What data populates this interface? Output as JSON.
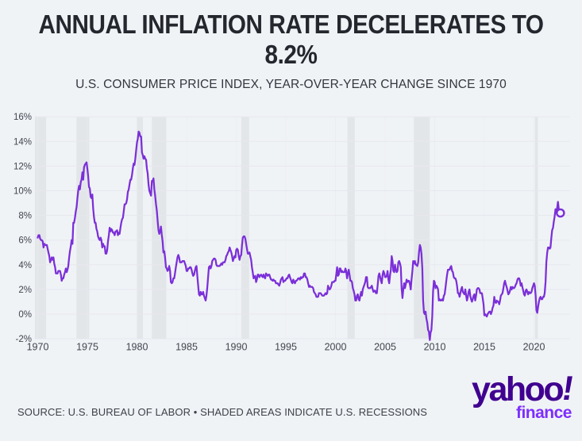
{
  "poster": {
    "headline_line1": "ANNUAL INFLATION RATE DECELERATES TO",
    "headline_line2": "8.2%",
    "headline_full": "ANNUAL INFLATION RATE DECELERATES TO 8.2%",
    "subtitle": "U.S. CONSUMER PRICE INDEX, YEAR-OVER-YEAR CHANGE SINCE 1970",
    "source_note": "SOURCE: U.S. BUREAU OF LABOR • SHADED AREAS INDICATE U.S. RECESSIONS",
    "logo": {
      "brand": "yahoo",
      "exclaim": "!",
      "sub_brand": "finance"
    }
  },
  "colors": {
    "background": "#f0f3f6",
    "line": "#7b2fd8",
    "recession_band": "#e3e6e9",
    "grid": "#e7e7ef",
    "grid_vertical": "#e9ecf0",
    "axis_text": "#41464e",
    "title_text": "#24272d",
    "logo_purple": "#400090",
    "logo_finance_purple": "#7d2eff"
  },
  "chart_data": {
    "type": "line",
    "title": "ANNUAL INFLATION RATE DECELERATES TO 8.2%",
    "subtitle": "U.S. CONSUMER PRICE INDEX, YEAR-OVER-YEAR CHANGE SINCE 1970",
    "unit": "%",
    "x_start": 1970,
    "x_end_label": "2022-09",
    "xticks": [
      1970,
      1975,
      1980,
      1985,
      1990,
      1995,
      2000,
      2005,
      2010,
      2015,
      2020
    ],
    "ylim": [
      -2,
      16
    ],
    "yticks": [
      -2,
      0,
      2,
      4,
      6,
      8,
      10,
      12,
      14,
      16
    ],
    "ytick_suffix": "%",
    "grid": true,
    "legend": false,
    "latest_point": {
      "date": "2022-09",
      "value": 8.2,
      "marker": "open-circle"
    },
    "recessions": [
      {
        "start": 1969.7,
        "end": 1970.85
      },
      {
        "start": 1973.9,
        "end": 1975.2
      },
      {
        "start": 1980.0,
        "end": 1980.6
      },
      {
        "start": 1981.5,
        "end": 1982.95
      },
      {
        "start": 1990.5,
        "end": 1991.3
      },
      {
        "start": 2001.2,
        "end": 2001.95
      },
      {
        "start": 2007.9,
        "end": 2009.5
      },
      {
        "start": 2020.1,
        "end": 2020.4
      }
    ],
    "series": [
      {
        "name": "U.S. CPI year-over-year % change",
        "color": "#7b2fd8",
        "monthly_by_year": [
          {
            "year": 1970,
            "values": [
              6.2,
              6.4,
              6.4,
              6.1,
              6.0,
              6.0,
              5.9,
              5.4,
              5.7,
              5.6,
              5.6,
              5.6
            ]
          },
          {
            "year": 1971,
            "values": [
              5.3,
              5.0,
              4.7,
              4.2,
              4.4,
              4.6,
              4.4,
              4.6,
              4.1,
              3.8,
              3.3,
              3.3
            ]
          },
          {
            "year": 1972,
            "values": [
              3.3,
              3.5,
              3.5,
              3.5,
              3.2,
              2.7,
              2.9,
              2.9,
              3.2,
              3.4,
              3.7,
              3.4
            ]
          },
          {
            "year": 1973,
            "values": [
              3.6,
              3.9,
              4.6,
              5.1,
              5.5,
              6.0,
              5.7,
              7.4,
              7.4,
              7.8,
              8.3,
              8.7
            ]
          },
          {
            "year": 1974,
            "values": [
              9.4,
              10.0,
              10.4,
              10.1,
              10.7,
              10.9,
              11.5,
              10.9,
              11.9,
              12.1,
              12.2,
              12.3
            ]
          },
          {
            "year": 1975,
            "values": [
              11.8,
              11.2,
              10.3,
              10.2,
              9.5,
              9.4,
              9.7,
              8.6,
              7.9,
              7.4,
              7.4,
              6.9
            ]
          },
          {
            "year": 1976,
            "values": [
              6.7,
              6.3,
              6.1,
              6.0,
              6.2,
              6.0,
              5.4,
              5.7,
              5.5,
              5.5,
              4.9,
              4.9
            ]
          },
          {
            "year": 1977,
            "values": [
              5.2,
              5.9,
              6.4,
              7.0,
              6.7,
              6.9,
              6.8,
              6.6,
              6.6,
              6.4,
              6.7,
              6.7
            ]
          },
          {
            "year": 1978,
            "values": [
              6.8,
              6.4,
              6.6,
              6.5,
              7.0,
              7.4,
              7.7,
              7.8,
              8.3,
              8.9,
              8.9,
              9.0
            ]
          },
          {
            "year": 1979,
            "values": [
              9.3,
              9.9,
              10.1,
              10.5,
              10.9,
              10.9,
              11.3,
              11.8,
              12.2,
              12.1,
              12.6,
              13.3
            ]
          },
          {
            "year": 1980,
            "values": [
              13.9,
              14.2,
              14.8,
              14.7,
              14.4,
              14.4,
              13.1,
              12.9,
              12.6,
              12.8,
              12.6,
              12.5
            ]
          },
          {
            "year": 1981,
            "values": [
              11.8,
              11.4,
              10.5,
              10.0,
              9.8,
              9.6,
              10.8,
              10.8,
              11.0,
              10.1,
              9.6,
              8.9
            ]
          },
          {
            "year": 1982,
            "values": [
              8.4,
              7.6,
              6.8,
              6.5,
              6.7,
              7.1,
              6.4,
              5.9,
              5.0,
              5.1,
              4.6,
              3.8
            ]
          },
          {
            "year": 1983,
            "values": [
              3.7,
              3.5,
              3.6,
              3.9,
              3.5,
              2.6,
              2.5,
              2.6,
              2.9,
              2.9,
              3.3,
              3.8
            ]
          },
          {
            "year": 1984,
            "values": [
              4.2,
              4.6,
              4.8,
              4.6,
              4.2,
              4.2,
              4.2,
              4.3,
              4.3,
              4.3,
              4.1,
              3.9
            ]
          },
          {
            "year": 1985,
            "values": [
              3.5,
              3.5,
              3.7,
              3.7,
              3.8,
              3.8,
              3.6,
              3.3,
              3.1,
              3.2,
              3.5,
              3.8
            ]
          },
          {
            "year": 1986,
            "values": [
              3.9,
              3.1,
              2.3,
              1.6,
              1.5,
              1.8,
              1.6,
              1.6,
              1.8,
              1.5,
              1.3,
              1.1
            ]
          },
          {
            "year": 1987,
            "values": [
              1.5,
              2.1,
              3.0,
              3.8,
              3.9,
              3.7,
              3.9,
              4.3,
              4.4,
              4.5,
              4.5,
              4.4
            ]
          },
          {
            "year": 1988,
            "values": [
              4.0,
              3.9,
              3.9,
              3.9,
              3.9,
              4.0,
              4.1,
              4.0,
              4.2,
              4.2,
              4.2,
              4.4
            ]
          },
          {
            "year": 1989,
            "values": [
              4.7,
              4.8,
              5.0,
              5.1,
              5.4,
              5.2,
              5.0,
              4.7,
              4.3,
              4.5,
              4.7,
              4.6
            ]
          },
          {
            "year": 1990,
            "values": [
              5.2,
              5.3,
              5.2,
              4.7,
              4.4,
              4.7,
              4.8,
              5.6,
              6.2,
              6.3,
              6.3,
              6.1
            ]
          },
          {
            "year": 1991,
            "values": [
              5.7,
              5.3,
              4.9,
              4.9,
              5.0,
              4.7,
              4.4,
              3.8,
              3.4,
              2.9,
              3.0,
              3.1
            ]
          },
          {
            "year": 1992,
            "values": [
              2.6,
              2.8,
              3.2,
              3.2,
              3.0,
              3.1,
              3.2,
              3.1,
              3.0,
              3.2,
              3.0,
              2.9
            ]
          },
          {
            "year": 1993,
            "values": [
              3.3,
              3.2,
              3.1,
              3.2,
              3.2,
              3.0,
              2.8,
              2.8,
              2.7,
              2.8,
              2.7,
              2.7
            ]
          },
          {
            "year": 1994,
            "values": [
              2.5,
              2.5,
              2.5,
              2.4,
              2.3,
              2.5,
              2.8,
              2.9,
              3.0,
              2.6,
              2.7,
              2.7
            ]
          },
          {
            "year": 1995,
            "values": [
              2.8,
              2.9,
              2.9,
              3.1,
              3.2,
              3.0,
              2.8,
              2.6,
              2.5,
              2.8,
              2.6,
              2.5
            ]
          },
          {
            "year": 1996,
            "values": [
              2.7,
              2.7,
              2.8,
              2.9,
              2.9,
              2.8,
              3.0,
              2.9,
              3.0,
              3.0,
              3.3,
              3.3
            ]
          },
          {
            "year": 1997,
            "values": [
              3.0,
              3.0,
              2.8,
              2.5,
              2.2,
              2.3,
              2.2,
              2.2,
              2.2,
              2.1,
              1.8,
              1.7
            ]
          },
          {
            "year": 1998,
            "values": [
              1.6,
              1.4,
              1.4,
              1.4,
              1.7,
              1.7,
              1.7,
              1.6,
              1.5,
              1.5,
              1.5,
              1.6
            ]
          },
          {
            "year": 1999,
            "values": [
              1.7,
              1.6,
              1.7,
              2.3,
              2.1,
              2.0,
              2.1,
              2.3,
              2.6,
              2.6,
              2.6,
              2.7
            ]
          },
          {
            "year": 2000,
            "values": [
              2.7,
              3.2,
              3.8,
              3.1,
              3.2,
              3.7,
              3.7,
              3.4,
              3.5,
              3.4,
              3.4,
              3.4
            ]
          },
          {
            "year": 2001,
            "values": [
              3.7,
              3.5,
              2.9,
              3.3,
              3.6,
              3.2,
              2.7,
              2.7,
              2.6,
              2.1,
              1.9,
              1.6
            ]
          },
          {
            "year": 2002,
            "values": [
              1.1,
              1.1,
              1.5,
              1.6,
              1.2,
              1.1,
              1.5,
              1.8,
              1.5,
              2.0,
              2.2,
              2.4
            ]
          },
          {
            "year": 2003,
            "values": [
              2.6,
              3.0,
              3.0,
              2.2,
              2.1,
              2.1,
              2.1,
              2.2,
              2.3,
              2.0,
              1.8,
              1.9
            ]
          },
          {
            "year": 2004,
            "values": [
              1.9,
              1.7,
              1.7,
              2.3,
              3.1,
              3.3,
              3.0,
              2.7,
              2.5,
              3.2,
              3.5,
              3.3
            ]
          },
          {
            "year": 2005,
            "values": [
              3.0,
              3.0,
              3.1,
              3.5,
              2.8,
              2.5,
              3.2,
              3.6,
              4.7,
              4.3,
              3.5,
              3.4
            ]
          },
          {
            "year": 2006,
            "values": [
              4.0,
              3.6,
              3.4,
              3.5,
              4.2,
              4.3,
              4.1,
              3.8,
              2.1,
              1.3,
              2.0,
              2.5
            ]
          },
          {
            "year": 2007,
            "values": [
              2.1,
              2.4,
              2.8,
              2.6,
              2.7,
              2.7,
              2.4,
              2.0,
              2.8,
              3.5,
              4.3,
              4.1
            ]
          },
          {
            "year": 2008,
            "values": [
              4.3,
              4.0,
              4.0,
              3.9,
              4.2,
              5.0,
              5.6,
              5.4,
              4.9,
              3.7,
              1.1,
              0.1
            ]
          },
          {
            "year": 2009,
            "values": [
              0.0,
              0.2,
              -0.4,
              -0.7,
              -1.3,
              -1.4,
              -2.1,
              -1.5,
              -1.3,
              -0.2,
              1.8,
              2.7
            ]
          },
          {
            "year": 2010,
            "values": [
              2.6,
              2.1,
              2.3,
              2.2,
              2.0,
              1.1,
              1.2,
              1.1,
              1.1,
              1.2,
              1.1,
              1.5
            ]
          },
          {
            "year": 2011,
            "values": [
              1.6,
              2.1,
              2.7,
              3.2,
              3.6,
              3.6,
              3.6,
              3.8,
              3.9,
              3.5,
              3.4,
              3.0
            ]
          },
          {
            "year": 2012,
            "values": [
              2.9,
              2.9,
              2.7,
              2.3,
              1.7,
              1.7,
              1.4,
              1.7,
              2.0,
              2.2,
              1.8,
              1.7
            ]
          },
          {
            "year": 2013,
            "values": [
              1.6,
              2.0,
              1.5,
              1.1,
              1.4,
              1.8,
              2.0,
              1.5,
              1.2,
              1.0,
              1.2,
              1.5
            ]
          },
          {
            "year": 2014,
            "values": [
              1.6,
              1.1,
              1.5,
              2.0,
              2.1,
              2.1,
              2.0,
              1.7,
              1.7,
              1.7,
              1.3,
              0.8
            ]
          },
          {
            "year": 2015,
            "values": [
              -0.1,
              0.0,
              -0.1,
              -0.2,
              0.0,
              0.1,
              0.2,
              0.2,
              0.0,
              0.2,
              0.5,
              0.7
            ]
          },
          {
            "year": 2016,
            "values": [
              1.4,
              1.0,
              0.9,
              1.1,
              1.0,
              1.0,
              0.8,
              1.1,
              1.5,
              1.6,
              1.7,
              2.1
            ]
          },
          {
            "year": 2017,
            "values": [
              2.5,
              2.7,
              2.4,
              2.2,
              1.9,
              1.6,
              1.7,
              1.9,
              2.2,
              2.0,
              2.2,
              2.1
            ]
          },
          {
            "year": 2018,
            "values": [
              2.1,
              2.2,
              2.4,
              2.5,
              2.8,
              2.9,
              2.9,
              2.7,
              2.3,
              2.5,
              2.2,
              1.9
            ]
          },
          {
            "year": 2019,
            "values": [
              1.6,
              1.5,
              1.9,
              2.0,
              1.8,
              1.6,
              1.8,
              1.7,
              1.7,
              1.8,
              2.1,
              2.3
            ]
          },
          {
            "year": 2020,
            "values": [
              2.5,
              2.3,
              1.5,
              0.3,
              0.1,
              0.6,
              1.0,
              1.3,
              1.4,
              1.2,
              1.2,
              1.4
            ]
          },
          {
            "year": 2021,
            "values": [
              1.4,
              1.7,
              2.6,
              4.2,
              5.0,
              5.4,
              5.4,
              5.3,
              5.4,
              6.2,
              6.8,
              7.0
            ]
          },
          {
            "year": 2022,
            "values": [
              7.5,
              7.9,
              8.5,
              8.3,
              8.6,
              9.1,
              8.5,
              8.3,
              8.2
            ]
          }
        ]
      }
    ]
  }
}
